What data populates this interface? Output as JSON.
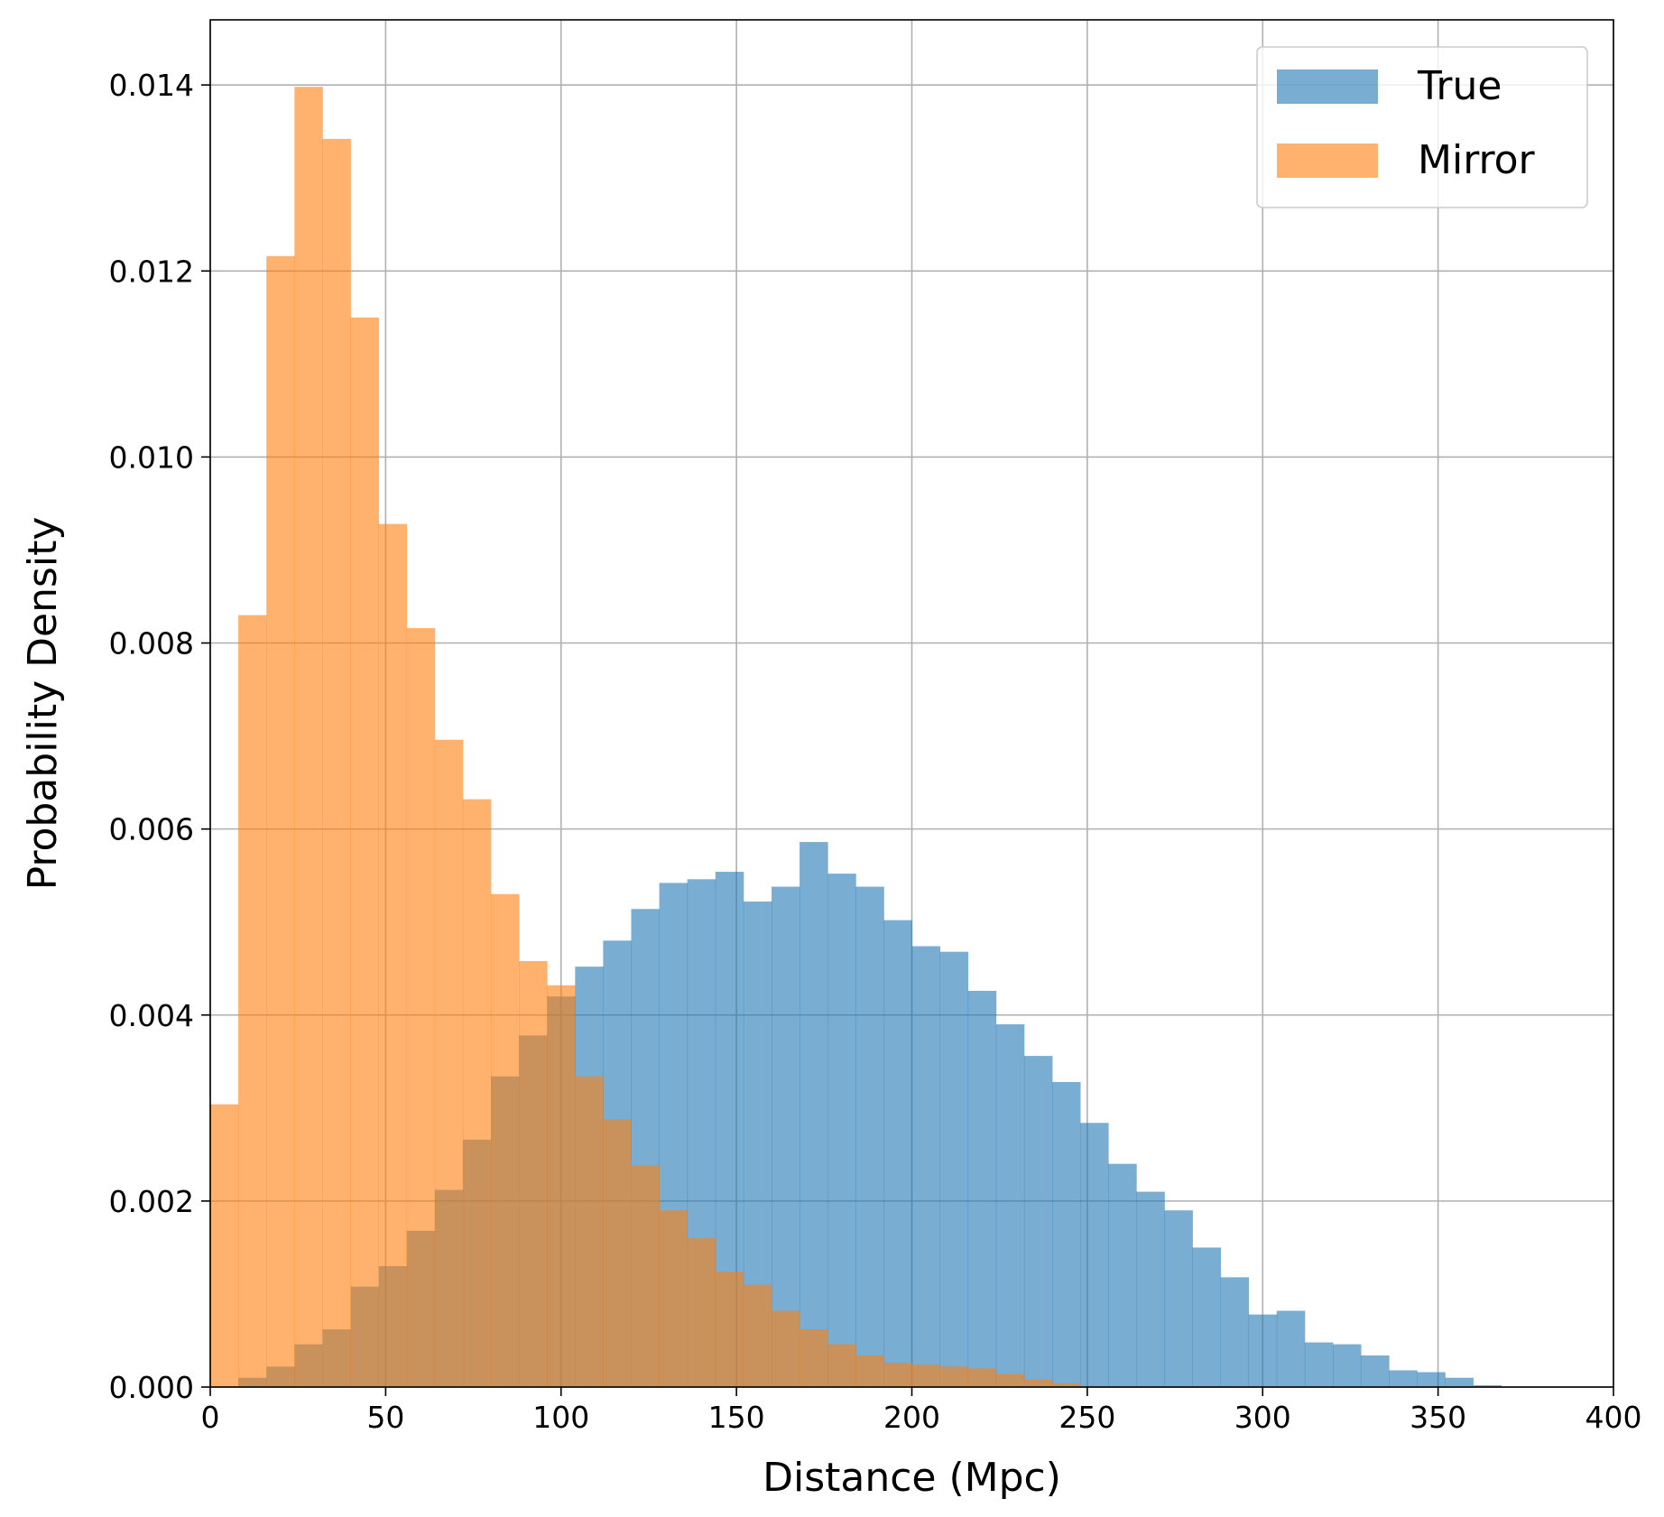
{
  "chart_data": {
    "type": "bar",
    "chart_kind": "histogram",
    "xlabel": "Distance (Mpc)",
    "ylabel": "Probability Density",
    "xlim": [
      0,
      400
    ],
    "ylim": [
      0,
      0.0147
    ],
    "x_ticks": [
      0,
      50,
      100,
      150,
      200,
      250,
      300,
      350,
      400
    ],
    "y_ticks": [
      0.0,
      0.002,
      0.004,
      0.006,
      0.008,
      0.01,
      0.012,
      0.014
    ],
    "y_tick_labels": [
      "0.000",
      "0.002",
      "0.004",
      "0.006",
      "0.008",
      "0.010",
      "0.012",
      "0.014"
    ],
    "grid": true,
    "legend_position": "top-right",
    "bin_width": 8,
    "bin_start": 0,
    "series": [
      {
        "name": "True",
        "color": "#1f77b4",
        "opacity": 0.6,
        "values": [
          0.0,
          0.0001,
          0.00022,
          0.00046,
          0.00062,
          0.00108,
          0.0013,
          0.00168,
          0.00212,
          0.00266,
          0.00334,
          0.00378,
          0.0042,
          0.00452,
          0.0048,
          0.00514,
          0.00542,
          0.00546,
          0.00554,
          0.00522,
          0.00538,
          0.00586,
          0.00552,
          0.00538,
          0.00502,
          0.00474,
          0.00468,
          0.00426,
          0.0039,
          0.00356,
          0.00328,
          0.00284,
          0.0024,
          0.0021,
          0.0019,
          0.0015,
          0.00118,
          0.00078,
          0.00082,
          0.00048,
          0.00046,
          0.00034,
          0.00018,
          0.00016,
          0.0001,
          2e-05
        ]
      },
      {
        "name": "Mirror",
        "color": "#ff7f0e",
        "opacity": 0.6,
        "values": [
          0.00304,
          0.0083,
          0.01216,
          0.01398,
          0.01342,
          0.0115,
          0.00928,
          0.00816,
          0.00696,
          0.00632,
          0.0053,
          0.00458,
          0.00432,
          0.00334,
          0.00288,
          0.00238,
          0.0019,
          0.0016,
          0.00124,
          0.0011,
          0.00082,
          0.00062,
          0.00046,
          0.00034,
          0.00026,
          0.00024,
          0.00022,
          0.0002,
          0.00014,
          8e-05,
          4e-05
        ]
      }
    ]
  }
}
